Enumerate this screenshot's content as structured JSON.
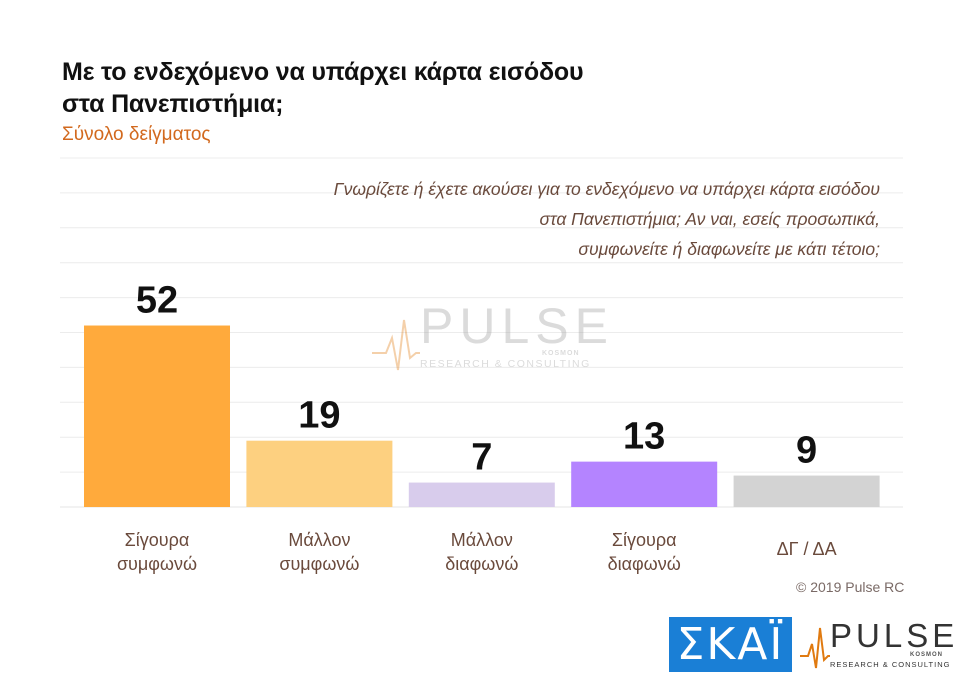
{
  "title_line1": "Με το ενδεχόμενο να υπάρχει κάρτα εισόδου",
  "title_line2": "στα Πανεπιστήμια;",
  "subtitle": "Σύνολο δείγματος",
  "question": [
    "Γνωρίζετε ή έχετε ακούσει για το ενδεχόμενο να υπάρχει κάρτα εισόδου",
    "στα Πανεπιστήμια; Αν ναι, εσείς προσωπικά,",
    "συμφωνείτε ή διαφωνείτε με κάτι τέτοιο;"
  ],
  "watermark": {
    "brand": "PULSE",
    "tag": "RESEARCH & CONSULTING",
    "kosmon": "KOSMON"
  },
  "copyright": "© 2019 Pulse RC",
  "logos": {
    "skai": "ΣΚΑΪ",
    "pulse": "PULSE",
    "pulse_tag": "RESEARCH & CONSULTING",
    "pulse_kosmon": "KOSMON"
  },
  "chart_data": {
    "type": "bar",
    "categories": [
      [
        "Σίγουρα",
        "συμφωνώ"
      ],
      [
        "Μάλλον",
        "συμφωνώ"
      ],
      [
        "Μάλλον",
        "διαφωνώ"
      ],
      [
        "Σίγουρα",
        "διαφωνώ"
      ],
      [
        "ΔΓ / ΔΑ"
      ]
    ],
    "values": [
      52,
      19,
      7,
      13,
      9
    ],
    "colors": [
      "#ffaa3c",
      "#fdd080",
      "#d8ccec",
      "#b484ff",
      "#d3d3d3"
    ],
    "ylim": [
      0,
      100
    ],
    "grid": true
  }
}
